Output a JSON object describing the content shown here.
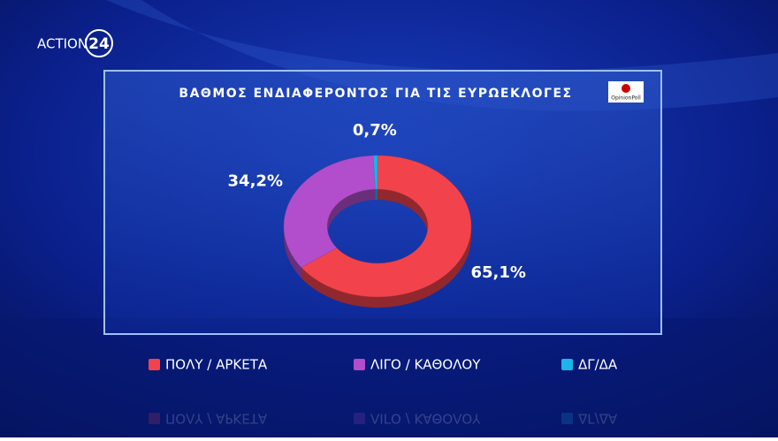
{
  "brand": {
    "name": "ACTION",
    "number": "24"
  },
  "poll_logo": "OpinionPoll",
  "chart_data": {
    "type": "donut",
    "title": "ΒΑΘΜΟΣ ΕΝΔΙΑΦΕΡΟΝΤΟΣ ΓΙΑ ΤΙΣ ΕΥΡΩΕΚΛΟΓΕΣ",
    "categories": [
      "ΠΟΛΥ / ΑΡΚΕΤΑ",
      "ΛΙΓΟ / ΚΑΘΟΛΟΥ",
      "ΔΓ/ΔΑ"
    ],
    "values": [
      65.1,
      34.2,
      0.7
    ],
    "value_labels": [
      "65,1%",
      "34,2%",
      "0,7%"
    ],
    "colors": [
      "#f2434c",
      "#b24ecb",
      "#1cb4ea"
    ]
  }
}
